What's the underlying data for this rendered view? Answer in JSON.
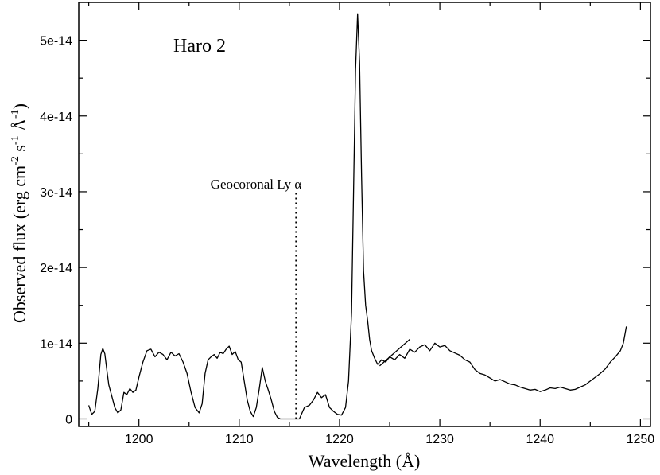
{
  "chart_data": {
    "type": "line",
    "title": "Haro 2",
    "xlabel": "Wavelength (Å)",
    "ylabel": {
      "prefix": "Observed flux (erg cm",
      "exp1": "-2",
      "mid1": " s",
      "exp2": "-1",
      "mid2": " Å",
      "exp3": "-1",
      "suffix": ")"
    },
    "xlim": [
      1194,
      1251
    ],
    "ylim": [
      -1e-15,
      5.5e-14
    ],
    "x_ticks": [
      1200,
      1210,
      1220,
      1230,
      1240,
      1250
    ],
    "x_tick_labels": [
      "1200",
      "1210",
      "1220",
      "1230",
      "1240",
      "1250"
    ],
    "y_ticks": [
      0,
      1e-14,
      2e-14,
      3e-14,
      4e-14,
      5e-14
    ],
    "y_tick_labels": [
      "0",
      "1e-14",
      "2e-14",
      "3e-14",
      "4e-14",
      "5e-14"
    ],
    "grid": false,
    "annotation": {
      "text": "Geocoronal Ly α",
      "x": 1215.67,
      "y_from": 0,
      "y_to": 3e-14,
      "style": "dotted"
    },
    "series": [
      {
        "x": [
          1195.0,
          1195.3,
          1195.6,
          1195.9,
          1196.2,
          1196.4,
          1196.6,
          1196.8,
          1197.0,
          1197.3,
          1197.6,
          1197.9,
          1198.2,
          1198.5,
          1198.8,
          1199.1,
          1199.4,
          1199.7,
          1200.0,
          1200.4,
          1200.8,
          1201.2,
          1201.6,
          1202.0,
          1202.4,
          1202.8,
          1203.2,
          1203.6,
          1204.0,
          1204.4,
          1204.8,
          1205.2,
          1205.6,
          1206.0,
          1206.3,
          1206.6,
          1206.9,
          1207.2,
          1207.5,
          1207.8,
          1208.1,
          1208.4,
          1208.7,
          1209.0,
          1209.3,
          1209.6,
          1209.9,
          1210.2,
          1210.5,
          1210.8,
          1211.1,
          1211.4,
          1211.7,
          1212.0,
          1212.3,
          1212.6,
          1212.9,
          1213.2,
          1213.5,
          1213.8,
          1214.1,
          1214.4,
          1214.7,
          1215.0,
          1215.3,
          1215.6,
          1216.0,
          1216.5,
          1217.0,
          1217.4,
          1217.8,
          1218.2,
          1218.6,
          1219.0,
          1219.4,
          1219.8,
          1220.2,
          1220.6,
          1220.9,
          1221.2,
          1221.4,
          1221.6,
          1221.8,
          1222.0,
          1222.2,
          1222.4,
          1222.6,
          1222.8,
          1223.0,
          1223.2,
          1223.5,
          1223.8,
          1224.2,
          1224.6,
          1225.0,
          1225.5,
          1226.0,
          1226.5,
          1227.0,
          1227.5,
          1228.0,
          1228.5,
          1229.0,
          1229.5,
          1230.0,
          1230.5,
          1231.0,
          1231.5,
          1232.0,
          1232.5,
          1233.0,
          1233.5,
          1234.0,
          1234.5,
          1235.0,
          1235.5,
          1236.0,
          1236.5,
          1237.0,
          1237.5,
          1238.0,
          1238.5,
          1239.0,
          1239.5,
          1240.0,
          1240.5,
          1241.0,
          1241.5,
          1242.0,
          1242.5,
          1243.0,
          1243.5,
          1244.0,
          1244.5,
          1245.0,
          1245.5,
          1246.0,
          1246.5,
          1247.0,
          1247.5,
          1248.0,
          1248.3,
          1248.6
        ],
        "y": [
          1.8e-15,
          6e-16,
          1e-15,
          4e-15,
          8.5e-15,
          9.3e-15,
          8.6e-15,
          6.5e-15,
          4.5e-15,
          3e-15,
          1.5e-15,
          8e-16,
          1.2e-15,
          3.5e-15,
          3.2e-15,
          4e-15,
          3.5e-15,
          3.8e-15,
          5.5e-15,
          7.5e-15,
          9e-15,
          9.2e-15,
          8.2e-15,
          8.8e-15,
          8.5e-15,
          7.8e-15,
          8.8e-15,
          8.3e-15,
          8.6e-15,
          7.5e-15,
          6e-15,
          3.5e-15,
          1.5e-15,
          8e-16,
          2e-15,
          6e-15,
          7.8e-15,
          8.2e-15,
          8.5e-15,
          8e-15,
          8.8e-15,
          8.6e-15,
          9.2e-15,
          9.6e-15,
          8.5e-15,
          8.9e-15,
          7.8e-15,
          7.5e-15,
          5e-15,
          2.5e-15,
          1e-15,
          3e-16,
          1.5e-15,
          4e-15,
          6.8e-15,
          5e-15,
          3.8e-15,
          2.5e-15,
          1e-15,
          2e-16,
          0,
          0,
          0,
          0,
          0,
          0,
          0,
          1.5e-15,
          1.8e-15,
          2.5e-15,
          3.5e-15,
          2.8e-15,
          3.2e-15,
          1.5e-15,
          1e-15,
          6e-16,
          5e-16,
          1.5e-15,
          5e-15,
          1.4e-14,
          3e-14,
          4.6e-14,
          5.35e-14,
          4.7e-14,
          3.2e-14,
          1.95e-14,
          1.5e-14,
          1.3e-14,
          1.05e-14,
          9e-15,
          8e-15,
          7.2e-15,
          7.8e-15,
          7.5e-15,
          8.2e-15,
          7.8e-15,
          8.5e-15,
          8e-15,
          9.2e-15,
          8.8e-15,
          9.5e-15,
          9.8e-15,
          9e-15,
          1e-14,
          9.5e-15,
          9.7e-15,
          9e-15,
          8.7e-15,
          8.4e-15,
          7.8e-15,
          7.5e-15,
          6.5e-15,
          6e-15,
          5.8e-15,
          5.4e-15,
          5e-15,
          5.2e-15,
          4.9e-15,
          4.6e-15,
          4.5e-15,
          4.2e-15,
          4e-15,
          3.8e-15,
          3.9e-15,
          3.6e-15,
          3.8e-15,
          4.1e-15,
          4e-15,
          4.2e-15,
          4e-15,
          3.8e-15,
          3.9e-15,
          4.2e-15,
          4.5e-15,
          5e-15,
          5.5e-15,
          6e-15,
          6.6e-15,
          7.5e-15,
          8.2e-15,
          9e-15,
          1e-14,
          1.22e-14
        ]
      },
      {
        "x": [
          1224.0,
          1227.0
        ],
        "y": [
          7e-15,
          1.05e-14
        ]
      }
    ]
  },
  "colors": {
    "line": "#000000",
    "axis": "#000000",
    "background": "#ffffff"
  }
}
